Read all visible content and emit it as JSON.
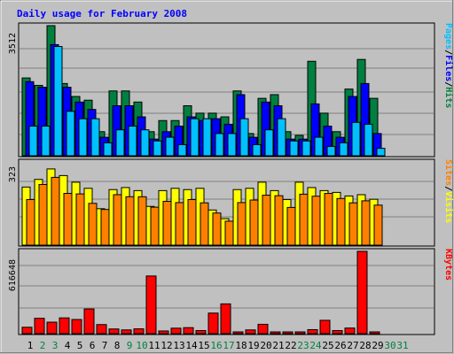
{
  "chart_data": [
    {
      "type": "bar",
      "title": "Daily usage for February 2008",
      "categories": [
        "1",
        "2",
        "3",
        "4",
        "5",
        "6",
        "7",
        "8",
        "9",
        "10",
        "11",
        "12",
        "13",
        "14",
        "15",
        "16",
        "17",
        "18",
        "19",
        "20",
        "21",
        "22",
        "23",
        "24",
        "25",
        "26",
        "27",
        "28",
        "29",
        "30",
        "31"
      ],
      "weekend_days": [
        "2",
        "3",
        "9",
        "10",
        "16",
        "17",
        "23",
        "24",
        "30",
        "31"
      ],
      "ymax_label": "3512",
      "ylim": [
        0,
        3512
      ],
      "right_label_parts": [
        "Pages",
        "/",
        "Files",
        "/",
        "Hits"
      ],
      "series": [
        {
          "name": "Hits",
          "color": "#008040",
          "values": [
            2100,
            1900,
            3512,
            1950,
            1600,
            1500,
            650,
            1750,
            1750,
            1450,
            650,
            950,
            950,
            1350,
            1150,
            1150,
            1050,
            1750,
            600,
            1550,
            1650,
            650,
            550,
            2550,
            1150,
            650,
            1800,
            2600,
            1550,
            0,
            0
          ]
        },
        {
          "name": "Files",
          "color": "#0000ff",
          "values": [
            2000,
            1850,
            3000,
            1850,
            1450,
            1250,
            500,
            1350,
            1350,
            1050,
            450,
            650,
            800,
            1050,
            950,
            1000,
            850,
            1650,
            500,
            1450,
            1350,
            450,
            450,
            1400,
            800,
            500,
            1600,
            1950,
            600,
            0,
            0
          ]
        },
        {
          "name": "Pages",
          "color": "#00c0ff",
          "values": [
            800,
            800,
            2950,
            1200,
            1000,
            1000,
            350,
            700,
            800,
            700,
            400,
            500,
            300,
            1000,
            1000,
            600,
            600,
            1000,
            300,
            700,
            1000,
            400,
            400,
            500,
            250,
            350,
            900,
            850,
            200,
            0,
            0
          ]
        }
      ]
    },
    {
      "type": "bar",
      "categories": [
        "1",
        "2",
        "3",
        "4",
        "5",
        "6",
        "7",
        "8",
        "9",
        "10",
        "11",
        "12",
        "13",
        "14",
        "15",
        "16",
        "17",
        "18",
        "19",
        "20",
        "21",
        "22",
        "23",
        "24",
        "25",
        "26",
        "27",
        "28",
        "29",
        "30",
        "31"
      ],
      "ymax_label": "323",
      "ylim": [
        0,
        323
      ],
      "right_label_parts": [
        "Sites",
        "/",
        "Visits"
      ],
      "series": [
        {
          "name": "Visits",
          "color": "#ffff00",
          "values": [
            228,
            258,
            299,
            273,
            247,
            223,
            143,
            218,
            226,
            214,
            152,
            214,
            223,
            218,
            223,
            138,
            104,
            218,
            223,
            247,
            214,
            179,
            247,
            226,
            214,
            207,
            193,
            198,
            180,
            0,
            0
          ]
        },
        {
          "name": "Sites",
          "color": "#ff8000",
          "values": [
            179,
            238,
            266,
            203,
            201,
            164,
            140,
            198,
            190,
            190,
            149,
            172,
            167,
            179,
            166,
            126,
            94,
            167,
            177,
            196,
            194,
            148,
            200,
            192,
            203,
            183,
            166,
            174,
            157,
            0,
            0
          ]
        }
      ]
    },
    {
      "type": "bar",
      "categories": [
        "1",
        "2",
        "3",
        "4",
        "5",
        "6",
        "7",
        "8",
        "9",
        "10",
        "11",
        "12",
        "13",
        "14",
        "15",
        "16",
        "17",
        "18",
        "19",
        "20",
        "21",
        "22",
        "23",
        "24",
        "25",
        "26",
        "27",
        "28",
        "29",
        "30",
        "31"
      ],
      "ymax_label": "616648",
      "ylim": [
        0,
        616648
      ],
      "right_label_parts": [
        "KBytes"
      ],
      "series": [
        {
          "name": "KBytes",
          "color": "#ff0000",
          "values": [
            48000,
            115000,
            86000,
            118000,
            106000,
            185000,
            68000,
            35000,
            28000,
            36000,
            432000,
            20000,
            41000,
            45000,
            23000,
            154000,
            223000,
            10000,
            28000,
            70000,
            8000,
            8000,
            10000,
            30000,
            100000,
            23000,
            42000,
            616648,
            8000,
            0,
            0
          ]
        }
      ]
    }
  ],
  "colors": {
    "panel": "#c0c0c0",
    "title": "#0000ff",
    "weekday_label": "#000000",
    "weekend_label": "#008040",
    "grid": "#808080"
  }
}
